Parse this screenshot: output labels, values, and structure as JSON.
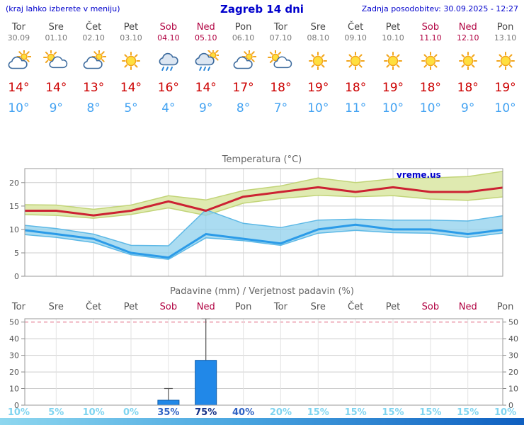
{
  "header": {
    "left_note": "(kraj lahko izberete v meniju)",
    "title": "Zagreb 14 dni",
    "updated": "Zadnja posodobitev: 30.09.2025 - 12:27"
  },
  "colors": {
    "header_blue": "#0000cc",
    "weekday_name": "#444444",
    "weekday_date": "#777777",
    "weekend": "#b00040",
    "tmax_red": "#cc0000",
    "tmin_blue": "#44a3f2",
    "bar_blue": "#2188e8",
    "bar_edge": "#0d5cab",
    "grid_gray": "#cccccc",
    "grid_red_dashed": "#e0607a",
    "prob_low": "#7fd4f0",
    "prob_mid": "#2f62c4",
    "prob_high": "#132f86"
  },
  "forecast": {
    "days": [
      {
        "name": "Tor",
        "date": "30.09",
        "weekend": false,
        "icon": "mostly-cloudy",
        "tmax": 14,
        "tmin": 10
      },
      {
        "name": "Sre",
        "date": "01.10",
        "weekend": false,
        "icon": "partly",
        "tmax": 14,
        "tmin": 9
      },
      {
        "name": "Čet",
        "date": "02.10",
        "weekend": false,
        "icon": "mostly-cloudy",
        "tmax": 13,
        "tmin": 8
      },
      {
        "name": "Pet",
        "date": "03.10",
        "weekend": false,
        "icon": "sunny",
        "tmax": 14,
        "tmin": 5
      },
      {
        "name": "Sob",
        "date": "04.10",
        "weekend": true,
        "icon": "rain",
        "tmax": 16,
        "tmin": 4
      },
      {
        "name": "Ned",
        "date": "05.10",
        "weekend": true,
        "icon": "rain-sun",
        "tmax": 14,
        "tmin": 9
      },
      {
        "name": "Pon",
        "date": "06.10",
        "weekend": false,
        "icon": "mostly-cloudy",
        "tmax": 17,
        "tmin": 8
      },
      {
        "name": "Tor",
        "date": "07.10",
        "weekend": false,
        "icon": "partly",
        "tmax": 18,
        "tmin": 7
      },
      {
        "name": "Sre",
        "date": "08.10",
        "weekend": false,
        "icon": "sunny",
        "tmax": 19,
        "tmin": 10
      },
      {
        "name": "Čet",
        "date": "09.10",
        "weekend": false,
        "icon": "sunny",
        "tmax": 18,
        "tmin": 11
      },
      {
        "name": "Pet",
        "date": "10.10",
        "weekend": false,
        "icon": "sunny",
        "tmax": 19,
        "tmin": 10
      },
      {
        "name": "Sob",
        "date": "11.10",
        "weekend": true,
        "icon": "sunny",
        "tmax": 18,
        "tmin": 10
      },
      {
        "name": "Ned",
        "date": "12.10",
        "weekend": true,
        "icon": "sunny",
        "tmax": 18,
        "tmin": 9
      },
      {
        "name": "Pon",
        "date": "13.10",
        "weekend": false,
        "icon": "sunny",
        "tmax": 19,
        "tmin": 10
      }
    ]
  },
  "chart_data": [
    {
      "type": "line",
      "title": "Temperatura (°C)",
      "x_labels": [
        "Tor",
        "Sre",
        "Čet",
        "Pet",
        "Sob",
        "Ned",
        "Pon",
        "Tor",
        "Sre",
        "Čet",
        "Pet",
        "Sob",
        "Ned",
        "Pon"
      ],
      "ylim": [
        0,
        23
      ],
      "yticks": [
        0,
        5,
        10,
        15,
        20
      ],
      "grid": true,
      "legend": "none",
      "watermark": "vreme.us",
      "series": [
        {
          "name": "max-temp",
          "color": "#cc2233",
          "values": [
            14,
            14,
            13,
            14,
            16,
            14,
            17,
            18,
            19,
            18,
            19,
            18,
            18,
            19
          ]
        },
        {
          "name": "min-temp",
          "color": "#2b9be8",
          "values": [
            10,
            9,
            8,
            5,
            4,
            9,
            8,
            7,
            10,
            11,
            10,
            10,
            9,
            10
          ]
        }
      ],
      "bands": [
        {
          "name": "max-temp-range",
          "color": "#dfeab0",
          "edge": "#c2d478",
          "opacity": 1,
          "upper": [
            15.3,
            15.2,
            14.3,
            15.2,
            17.2,
            16.3,
            18.3,
            19.3,
            21,
            20,
            20.8,
            21,
            21.3,
            22.5
          ],
          "lower": [
            13.2,
            13,
            12.4,
            13.2,
            14.6,
            13,
            15.6,
            16.6,
            17.3,
            17,
            17.2,
            16.5,
            16.2,
            17
          ]
        },
        {
          "name": "min-temp-range",
          "color": "#8fd0ec",
          "edge": "#5cb8e6",
          "opacity": 0.75,
          "upper": [
            11,
            10.2,
            9,
            6.6,
            6.5,
            14.2,
            11.3,
            10.4,
            12,
            12.2,
            12,
            12,
            11.8,
            13
          ],
          "lower": [
            9,
            8.3,
            7.2,
            4.6,
            3.6,
            8.2,
            7.6,
            6.6,
            9.2,
            9.8,
            9.3,
            9.2,
            8.3,
            9.3
          ]
        }
      ]
    },
    {
      "type": "bar",
      "title": "Padavine (mm) / Verjetnost padavin (%)",
      "categories": [
        "Tor",
        "Sre",
        "Čet",
        "Pet",
        "Sob",
        "Ned",
        "Pon",
        "Tor",
        "Sre",
        "Čet",
        "Pet",
        "Sob",
        "Ned",
        "Pon"
      ],
      "values": [
        0,
        0,
        0,
        0,
        3,
        27,
        0,
        0,
        0,
        0,
        0,
        0,
        0,
        0
      ],
      "whisker_low": [
        0,
        0,
        0,
        0,
        0,
        5,
        0,
        0,
        0,
        0,
        0,
        0,
        0,
        0
      ],
      "whisker_high": [
        0,
        0,
        0,
        0,
        10,
        52,
        0,
        0,
        0,
        0,
        0,
        0,
        0,
        0
      ],
      "probabilities": [
        10,
        5,
        10,
        0,
        35,
        75,
        40,
        20,
        15,
        15,
        15,
        15,
        15,
        10
      ],
      "ylim": [
        0,
        52
      ],
      "yticks": [
        0,
        10,
        20,
        30,
        40,
        50
      ],
      "grid": true
    }
  ]
}
